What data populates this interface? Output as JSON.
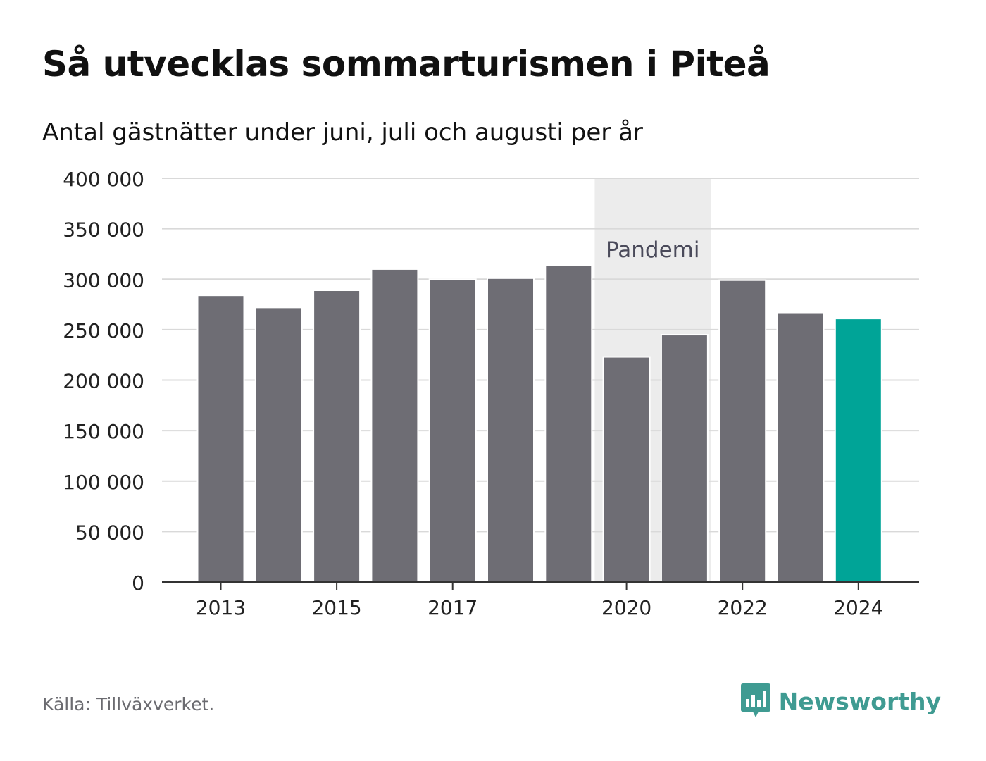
{
  "title": "Så utvecklas sommarturismen i Piteå",
  "subtitle": "Antal gästnätter under juni, juli och augusti per år",
  "source": "Källa: Tillväxverket.",
  "brand": {
    "name": "Newsworthy",
    "icon": "newsworthy-logo-icon",
    "color": "#3f9b92"
  },
  "colors": {
    "bar": "#6e6d74",
    "highlight": "#00a497",
    "band": "#ececec",
    "grid": "#d9d9d9",
    "axis": "#333333",
    "annotation": "#4a4a5a"
  },
  "chart_data": {
    "type": "bar",
    "title": "Så utvecklas sommarturismen i Piteå",
    "subtitle": "Antal gästnätter under juni, juli och augusti per år",
    "xlabel": "",
    "ylabel": "",
    "categories": [
      2013,
      2014,
      2015,
      2016,
      2017,
      2018,
      2019,
      2020,
      2021,
      2022,
      2023,
      2024
    ],
    "values": [
      284000,
      272000,
      289000,
      310000,
      300000,
      301000,
      314000,
      223000,
      245000,
      299000,
      267000,
      261000
    ],
    "highlight_category": 2024,
    "ylim": [
      0,
      400000
    ],
    "yticks": [
      0,
      50000,
      100000,
      150000,
      200000,
      250000,
      300000,
      350000,
      400000
    ],
    "ytick_labels": [
      "0",
      "50 000",
      "100 000",
      "150 000",
      "200 000",
      "250 000",
      "300 000",
      "350 000",
      "400 000"
    ],
    "xtick_labels": [
      {
        "category": 2013,
        "label": "2013"
      },
      {
        "category": 2015,
        "label": "2015"
      },
      {
        "category": 2017,
        "label": "2017"
      },
      {
        "category": 2020,
        "label": "2020"
      },
      {
        "category": 2022,
        "label": "2022"
      },
      {
        "category": 2024,
        "label": "2024"
      }
    ],
    "annotations": [
      {
        "type": "band",
        "from": 2020,
        "to": 2021,
        "label": "Pandemi"
      }
    ],
    "grid": true,
    "legend": "none"
  }
}
